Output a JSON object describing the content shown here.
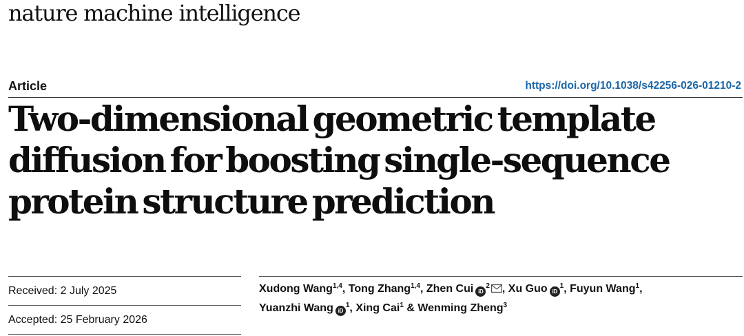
{
  "journal": "nature machine intelligence",
  "article_type": "Article",
  "doi": "https://doi.org/10.1038/s42256-026-01210-2",
  "title": {
    "line1": "Two-dimensional geometric template",
    "line2": "diffusion for boosting single-sequence",
    "line3": "protein structure prediction"
  },
  "dates": {
    "received": "Received: 2 July 2025",
    "accepted": "Accepted: 25 February 2026"
  },
  "authors": [
    {
      "name": "Xudong Wang",
      "sup": "1,4",
      "sep": ", "
    },
    {
      "name": "Tong Zhang",
      "sup": "1,4",
      "sep": ", "
    },
    {
      "name": "Zhen Cui",
      "sup": "2",
      "sep": ", "
    },
    {
      "name": "Xu Guo",
      "sup": "1",
      "sep": ", "
    },
    {
      "name": "Fuyun Wang",
      "sup": "1",
      "sep": ","
    },
    {
      "name": "Yuanzhi Wang",
      "sup": "1",
      "sep": ", "
    },
    {
      "name": "Xing Cai",
      "sup": "1",
      "sep": " & "
    },
    {
      "name": "Wenming Zheng",
      "sup": "3",
      "sep": ""
    }
  ],
  "icons": {
    "orcid": "orcid-icon",
    "mail": "mail-icon"
  },
  "colors": {
    "doi_link": "#1a66a8"
  }
}
